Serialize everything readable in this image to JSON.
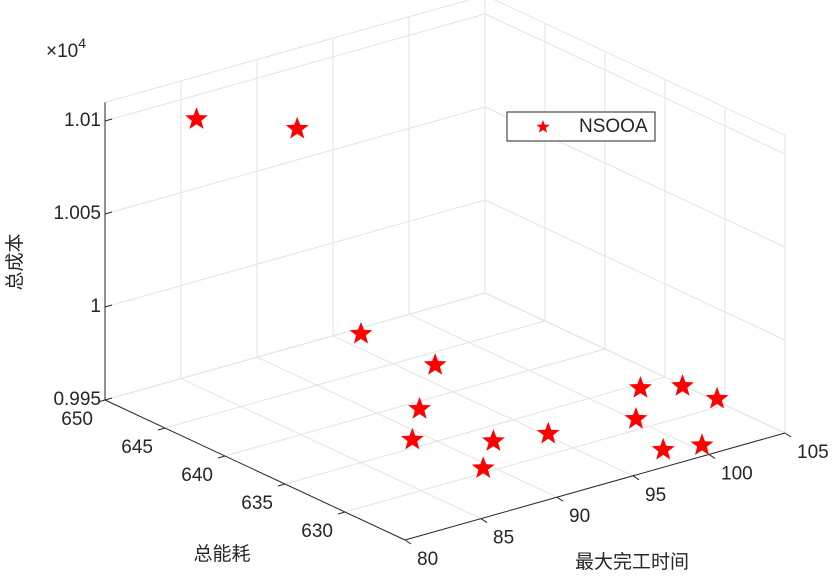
{
  "chart_data": {
    "type": "scatter3d",
    "xlabel": "最大完工时间",
    "ylabel": "总能耗",
    "zlabel": "总成本",
    "z_multiplier_base": "×10",
    "z_multiplier_power": "4",
    "xlim": [
      80,
      105
    ],
    "xticks": [
      80,
      85,
      90,
      95,
      100,
      105
    ],
    "ylim": [
      625,
      650
    ],
    "yticks": [
      630,
      635,
      640,
      645,
      650
    ],
    "zlim": [
      0.995,
      1.011
    ],
    "zticks": [
      0.995,
      1,
      1.005,
      1.01
    ],
    "grid": true,
    "legend": "northeast",
    "series": [
      {
        "name": "NSOOA",
        "color": "#ff0000",
        "marker": "star",
        "x": [
          83.1,
          87.2,
          95.5,
          95.8,
          91.3,
          88.3,
          91.5,
          88.7,
          94.4,
          102.2,
          104.1,
          104.4,
          99.3,
          97.7,
          99.7
        ],
        "y": [
          646.3,
          643.1,
          648.3,
          642.5,
          638.1,
          634.9,
          632.2,
          629.5,
          631.3,
          633.5,
          632.4,
          629.9,
          630.2,
          625.9,
          625.2
        ],
        "z": [
          1.0105,
          1.01,
          0.9955,
          0.9955,
          0.9955,
          0.9955,
          0.9955,
          0.9955,
          0.9955,
          0.9955,
          0.9955,
          0.9955,
          0.9955,
          0.9955,
          0.9955
        ]
      }
    ]
  }
}
